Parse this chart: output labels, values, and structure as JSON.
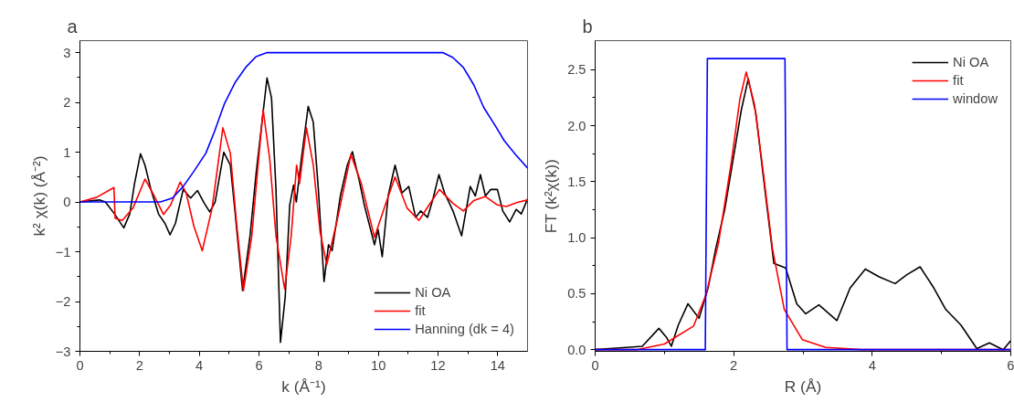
{
  "chart_data": [
    {
      "type": "line",
      "title": "a",
      "xlabel": "k (Å⁻¹)",
      "ylabel": "k² χ(k) (Å⁻²)",
      "xlim": [
        0,
        15
      ],
      "ylim": [
        -3,
        3.24
      ],
      "xticks": [
        0,
        2,
        4,
        6,
        8,
        10,
        12,
        14
      ],
      "yticks": [
        -3,
        -2,
        -1,
        0,
        1,
        2,
        3
      ],
      "legend": "bottom right",
      "grid": false,
      "marker": "none",
      "line_style": "solid",
      "series": [
        {
          "name": "Ni OA",
          "color": "#000000",
          "x": [
            0,
            0.65,
            0.85,
            1.16,
            1.47,
            1.67,
            1.83,
            2.03,
            2.18,
            2.38,
            2.64,
            2.85,
            3.02,
            3.2,
            3.46,
            3.71,
            3.94,
            4.17,
            4.35,
            4.53,
            4.82,
            5.04,
            5.19,
            5.45,
            5.7,
            5.91,
            6.27,
            6.42,
            6.57,
            6.72,
            6.88,
            7.03,
            7.16,
            7.25,
            7.42,
            7.65,
            7.82,
            7.99,
            8.18,
            8.33,
            8.45,
            8.73,
            8.96,
            9.13,
            9.36,
            9.53,
            9.87,
            9.99,
            10.13,
            10.33,
            10.56,
            10.79,
            11.02,
            11.25,
            11.42,
            11.65,
            11.83,
            12.03,
            12.22,
            12.5,
            12.79,
            13.08,
            13.25,
            13.42,
            13.59,
            13.76,
            13.99,
            14.17,
            14.4,
            14.62,
            14.79,
            15
          ],
          "values": [
            0,
            0.04,
            0,
            -0.24,
            -0.52,
            -0.24,
            0.37,
            0.97,
            0.74,
            0.25,
            -0.25,
            -0.43,
            -0.66,
            -0.43,
            0.25,
            0.08,
            0.23,
            -0.03,
            -0.2,
            0,
            1.0,
            0.74,
            -0.15,
            -1.78,
            -0.68,
            0.61,
            2.49,
            2.09,
            0.25,
            -2.82,
            -1.9,
            -0.06,
            0.34,
            0,
            0.86,
            1.92,
            1.6,
            0.25,
            -1.6,
            -0.86,
            -0.98,
            0.13,
            0.74,
            1.01,
            0.43,
            -0.06,
            -0.86,
            -0.55,
            -1.1,
            0.13,
            0.74,
            0.18,
            0.31,
            -0.31,
            -0.18,
            -0.31,
            0.06,
            0.55,
            0.18,
            -0.18,
            -0.68,
            0.31,
            0.12,
            0.55,
            0.12,
            0.25,
            0.25,
            -0.18,
            -0.4,
            -0.15,
            -0.24,
            0.06
          ]
        },
        {
          "name": "fit",
          "color": "#ff0000",
          "x": [
            0,
            0.55,
            1.14,
            1.18,
            1.42,
            1.78,
            2.18,
            2.49,
            2.8,
            3.04,
            3.36,
            3.56,
            3.82,
            4.1,
            4.43,
            4.79,
            5.04,
            5.24,
            5.48,
            5.76,
            5.97,
            6.14,
            6.36,
            6.57,
            6.86,
            7.08,
            7.26,
            7.36,
            7.59,
            7.82,
            8.05,
            8.27,
            8.62,
            9.08,
            9.43,
            9.87,
            10.2,
            10.56,
            10.96,
            11.36,
            11.7,
            12.05,
            12.5,
            12.85,
            13.2,
            13.59,
            13.99,
            14.29,
            14.66,
            15
          ],
          "values": [
            0,
            0.09,
            0.29,
            -0.33,
            -0.37,
            -0.12,
            0.46,
            0.12,
            -0.25,
            -0.06,
            0.4,
            0.18,
            -0.49,
            -0.98,
            -0.12,
            1.49,
            0.98,
            -0.37,
            -1.78,
            -0.68,
            0.74,
            1.85,
            0.86,
            -0.68,
            -1.75,
            -0.68,
            0.74,
            0.37,
            1.49,
            0.74,
            -0.61,
            -1.26,
            -0.37,
            0.95,
            0.37,
            -0.71,
            -0.12,
            0.5,
            -0.12,
            -0.37,
            -0.06,
            0.25,
            -0.03,
            -0.18,
            0.03,
            0.11,
            -0.06,
            -0.09,
            -0.01,
            0.04
          ]
        },
        {
          "name": "Hanning (dk = 4)",
          "color": "#0000ff",
          "x": [
            0,
            2.7,
            3.1,
            3.46,
            3.8,
            4.22,
            4.5,
            4.84,
            5.2,
            5.55,
            5.9,
            6.27,
            12.16,
            12.5,
            12.85,
            13.2,
            13.53,
            13.9,
            14.22,
            14.6,
            15
          ],
          "values": [
            0,
            0,
            0.08,
            0.31,
            0.6,
            0.98,
            1.4,
            1.97,
            2.4,
            2.7,
            2.92,
            3,
            3,
            2.9,
            2.7,
            2.35,
            1.9,
            1.55,
            1.23,
            0.95,
            0.68
          ]
        }
      ]
    },
    {
      "type": "line",
      "title": "b",
      "xlabel": "R (Å)",
      "ylabel": "FT (k²χ(k))",
      "xlim": [
        0,
        6
      ],
      "ylim": [
        -0.015,
        2.76
      ],
      "xticks": [
        0,
        2,
        4,
        6
      ],
      "yticks": [
        {
          "value": 0,
          "label": "0.0"
        },
        0.5,
        {
          "value": 1,
          "label": "1.0"
        },
        1.5,
        {
          "value": 2,
          "label": "2.0"
        },
        2.5
      ],
      "legend": "top right",
      "grid": false,
      "marker": "none",
      "line_style": "solid",
      "series": [
        {
          "name": "Ni OA",
          "color": "#000000",
          "x": [
            0,
            0.45,
            0.68,
            0.92,
            1.03,
            1.1,
            1.2,
            1.34,
            1.5,
            1.63,
            1.74,
            1.87,
            2.0,
            2.11,
            2.21,
            2.32,
            2.45,
            2.58,
            2.75,
            2.91,
            3.04,
            3.23,
            3.49,
            3.68,
            3.9,
            4.1,
            4.33,
            4.5,
            4.69,
            4.89,
            5.06,
            5.28,
            5.51,
            5.69,
            5.89,
            6.0
          ],
          "values": [
            0,
            0.02,
            0.03,
            0.19,
            0.11,
            0.03,
            0.22,
            0.41,
            0.28,
            0.55,
            0.9,
            1.25,
            1.73,
            2.14,
            2.42,
            2.11,
            1.43,
            0.77,
            0.73,
            0.41,
            0.32,
            0.4,
            0.26,
            0.55,
            0.72,
            0.65,
            0.59,
            0.67,
            0.74,
            0.55,
            0.36,
            0.22,
            0.01,
            0.06,
            0,
            0.08
          ]
        },
        {
          "name": "fit",
          "color": "#ff0000",
          "x": [
            0,
            0.6,
            1.0,
            1.42,
            1.6,
            1.78,
            1.96,
            2.09,
            2.18,
            2.3,
            2.43,
            2.56,
            2.73,
            2.99,
            3.33,
            3.85,
            6.0
          ],
          "values": [
            0,
            0,
            0.05,
            0.21,
            0.49,
            0.95,
            1.65,
            2.24,
            2.48,
            2.19,
            1.57,
            0.9,
            0.36,
            0.09,
            0.02,
            0,
            0
          ]
        },
        {
          "name": "window",
          "color": "#0000ff",
          "x": [
            0,
            1.59,
            1.62,
            2.74,
            2.77,
            6.0
          ],
          "values": [
            0,
            0,
            2.6,
            2.6,
            0,
            0
          ]
        }
      ]
    }
  ]
}
